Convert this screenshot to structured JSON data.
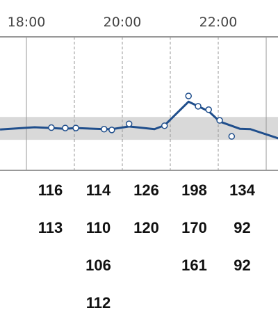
{
  "chart_data": {
    "type": "line",
    "xlim": [
      17.449,
      23.246
    ],
    "ylim": [
      0,
      350
    ],
    "xticks": [
      {
        "value": 18,
        "label": "18:00"
      },
      {
        "value": 20,
        "label": "20:00"
      },
      {
        "value": 22,
        "label": "22:00"
      }
    ],
    "hour_lines": [
      18,
      19,
      20,
      21,
      22,
      23
    ],
    "target_band": [
      80,
      140
    ],
    "band_color": "#d9d9d9",
    "series": [
      {
        "color": "#1f4e8c",
        "x": [
          17.45,
          18.17,
          18.52,
          18.81,
          19.03,
          19.62,
          19.78,
          20.14,
          20.67,
          20.88,
          21.38,
          21.8,
          22.03,
          22.45,
          22.67,
          23.25
        ],
        "values": [
          107,
          113,
          111,
          109,
          111,
          108,
          108,
          115,
          108,
          118,
          180,
          155,
          128,
          109,
          108,
          84
        ]
      },
      {
        "color": "#1f4e8c",
        "x": [
          18.52,
          18.81,
          19.03,
          19.62,
          19.78,
          20.14,
          20.88,
          21.38,
          21.58,
          21.8,
          22.03,
          22.28
        ],
        "values": [
          112,
          111,
          111,
          108,
          106,
          122,
          117,
          195,
          168,
          159,
          131,
          89
        ]
      }
    ],
    "readings": [
      {
        "hour": 18,
        "values": [
          116,
          113
        ]
      },
      {
        "hour": 19,
        "values": [
          114,
          110,
          106,
          112
        ]
      },
      {
        "hour": 20,
        "values": [
          126,
          120
        ]
      },
      {
        "hour": 21,
        "values": [
          198,
          170,
          161
        ]
      },
      {
        "hour": 22,
        "values": [
          134,
          92,
          92
        ]
      }
    ]
  }
}
